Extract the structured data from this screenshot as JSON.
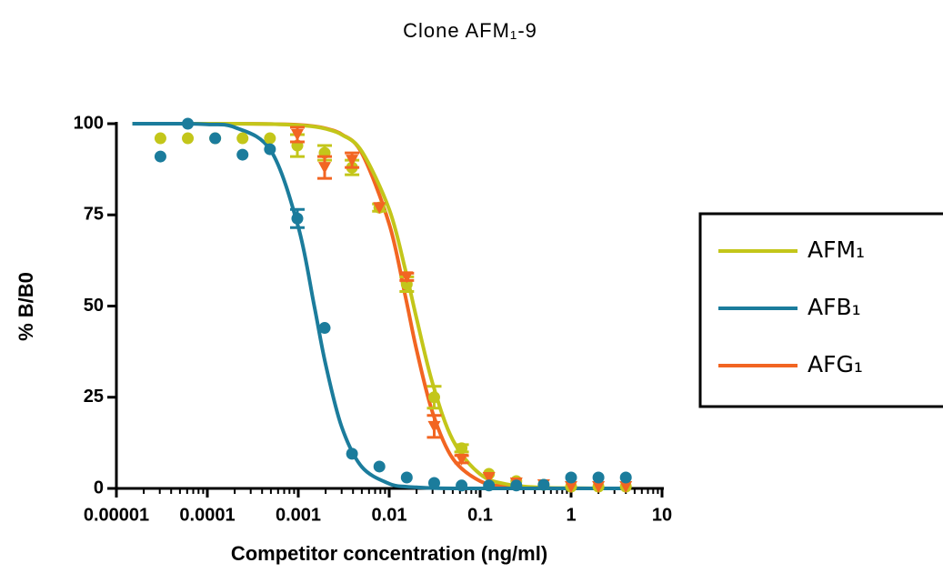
{
  "chart_data": {
    "type": "scatter",
    "title": "Clone AFM₁-9",
    "x_label": "Competitor concentration (ng/ml)",
    "y_label": "% B/B0",
    "xscale": "log",
    "xlim": [
      1e-05,
      10
    ],
    "xticks": [
      1e-05,
      0.0001,
      0.001,
      0.01,
      0.1,
      1,
      10
    ],
    "ylim": [
      0,
      100
    ],
    "yticks": [
      0,
      25,
      50,
      75,
      100
    ],
    "legend": "right",
    "x": [
      3.05e-05,
      6.1e-05,
      0.000122,
      0.000244,
      0.000488,
      0.000977,
      0.00195,
      0.0039,
      0.0078,
      0.0156,
      0.03125,
      0.0625,
      0.125,
      0.25,
      0.5,
      1,
      2,
      4
    ],
    "fit_x": [
      1.5e-05,
      5e-05,
      0.0001,
      0.0002,
      0.0005,
      0.001,
      0.0015,
      0.002,
      0.003,
      0.005,
      0.01,
      0.015,
      0.02,
      0.03,
      0.05,
      0.1,
      0.2,
      0.5,
      1,
      2,
      4
    ],
    "series": [
      {
        "name": "AFM₁",
        "color": "#c3c61a",
        "marker": "circle",
        "values": [
          96,
          96,
          96,
          96,
          96,
          94,
          92,
          88,
          77,
          56,
          25,
          11,
          4,
          2,
          1,
          0.5,
          0.5,
          0.5
        ],
        "errors": [
          0,
          0,
          0,
          0,
          0,
          3,
          2,
          2,
          1,
          2,
          3,
          1,
          0,
          0,
          0,
          0,
          0,
          0
        ],
        "fit": [
          100,
          100,
          100,
          100,
          99.9,
          99.6,
          99.2,
          98.6,
          97.0,
          92.4,
          76.5,
          60.1,
          46.6,
          28.8,
          13.3,
          3.9,
          1.1,
          0.2,
          0.1,
          0,
          0
        ]
      },
      {
        "name": "AFB₁",
        "color": "#1b7c9c",
        "marker": "circle",
        "values": [
          91,
          100,
          96,
          91.5,
          93,
          74,
          44,
          9.5,
          6,
          3,
          1.5,
          0.8,
          0.8,
          0.8,
          1,
          3,
          3,
          3
        ],
        "errors": [
          0,
          0,
          0,
          0,
          0,
          2.5,
          0,
          0,
          0,
          0,
          0,
          0,
          0,
          0,
          0,
          0,
          0,
          0
        ],
        "fit": [
          100,
          100,
          99.8,
          99.0,
          92.6,
          71.7,
          50,
          34.0,
          16.9,
          5.9,
          1.3,
          0.5,
          0.3,
          0.1,
          0,
          0,
          0,
          0,
          0,
          0,
          0
        ]
      },
      {
        "name": "AFG₁",
        "color": "#f26522",
        "marker": "triangle-down",
        "values": [
          null,
          null,
          null,
          null,
          null,
          97,
          88,
          90,
          77,
          58,
          17,
          8,
          3,
          1.5,
          1,
          0.5,
          0.5,
          0.5
        ],
        "errors": [
          null,
          null,
          null,
          null,
          null,
          2,
          3,
          2,
          0,
          1,
          3,
          1,
          0,
          0,
          0,
          0,
          0,
          0
        ],
        "fit": [
          100,
          100,
          100,
          100,
          99.9,
          99.7,
          99.3,
          98.7,
          97.1,
          91.9,
          72.5,
          52.9,
          38.0,
          20.8,
          8.2,
          2.0,
          0.5,
          0.1,
          0,
          0,
          0
        ]
      }
    ]
  }
}
